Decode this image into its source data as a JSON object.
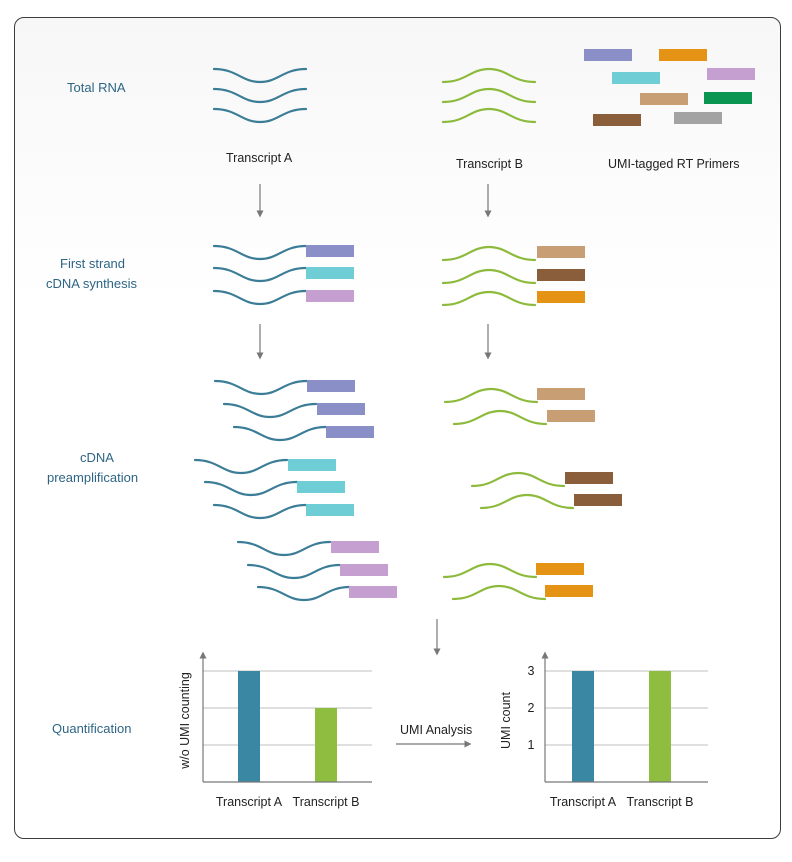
{
  "colors": {
    "transcript_a": "#3b7c96",
    "transcript_b": "#8dba3c",
    "step_text": "#2e6585",
    "arrow": "#777777",
    "bar_a": "#3a87a3",
    "bar_b": "#8ebd3f"
  },
  "steps": {
    "total_rna": "Total RNA",
    "first_strand_line1": "First strand",
    "first_strand_line2": "cDNA synthesis",
    "preamp_line1": "cDNA",
    "preamp_line2": "preamplification",
    "quantification": "Quantification"
  },
  "labels": {
    "transcript_a": "Transcript A",
    "transcript_b": "Transcript B",
    "primers": "UMI-tagged RT Primers",
    "umi_analysis": "UMI Analysis"
  },
  "primer_colors": [
    "#8a8fc8",
    "#e49315",
    "#6fcdd6",
    "#c49fd0",
    "#c89f75",
    "#0a9651",
    "#8a5d3b",
    "#a3a3a3"
  ],
  "chart_data": [
    {
      "type": "bar",
      "categories": [
        "Transcript A",
        "Transcript B"
      ],
      "values": [
        3,
        2
      ],
      "ylabel": "w/o UMI counting",
      "ylim": [
        0,
        3
      ],
      "grid": true
    },
    {
      "type": "bar",
      "categories": [
        "Transcript A",
        "Transcript B"
      ],
      "values": [
        3,
        3
      ],
      "ylabel": "UMI count",
      "yticks": [
        "1",
        "2",
        "3"
      ],
      "ylim": [
        0,
        3
      ],
      "grid": true
    }
  ]
}
